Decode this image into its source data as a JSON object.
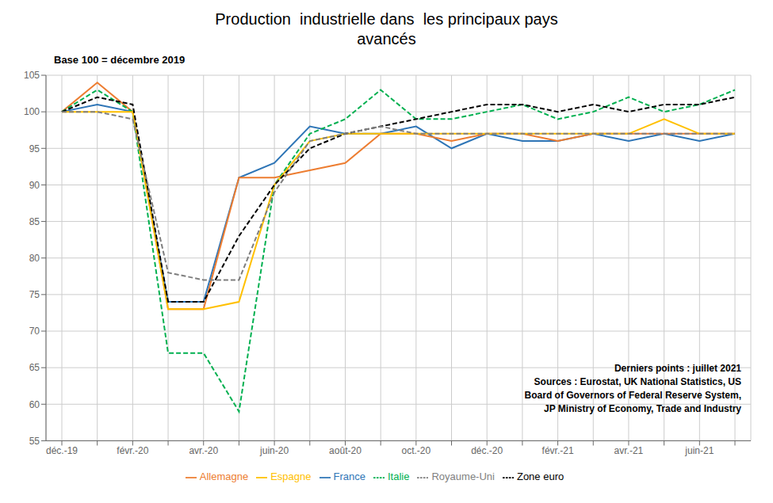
{
  "chart_data": {
    "type": "line",
    "title": "Production  industrielle dans  les principaux pays\navancés",
    "subtitle": "Base 100 = décembre 2019",
    "annotations": [
      "Derniers points : juillet 2021",
      "Sources : Eurostat, UK National Statistics, US",
      "Board of Governors of Federal Reserve System,",
      "JP Ministry of Economy, Trade and Industry"
    ],
    "categories": [
      "déc.-19",
      null,
      "févr.-20",
      null,
      "avr.-20",
      null,
      "juin-20",
      null,
      "août-20",
      null,
      "oct.-20",
      null,
      "déc.-20",
      null,
      "févr.-21",
      null,
      "avr.-21",
      null,
      "juin-21",
      null
    ],
    "series": [
      {
        "name": "France",
        "color": "#2E75B6",
        "line_style": "solid",
        "values": [
          100,
          101,
          100,
          74,
          74,
          91,
          93,
          98,
          97,
          97,
          98,
          95,
          97,
          96,
          96,
          97,
          96,
          97,
          96,
          97
        ]
      },
      {
        "name": "Allemagne",
        "color": "#ED7D31",
        "line_style": "solid",
        "values": [
          100,
          104,
          100,
          73,
          73,
          91,
          91,
          92,
          93,
          97,
          97,
          96,
          97,
          97,
          96,
          97,
          97,
          97,
          97,
          97
        ]
      },
      {
        "name": "Italie",
        "color": "#00B050",
        "line_style": "dashed",
        "values": [
          100,
          103,
          100,
          67,
          67,
          59,
          90,
          97,
          99,
          103,
          99,
          99,
          100,
          101,
          99,
          100,
          102,
          100,
          101,
          103
        ]
      },
      {
        "name": "Espagne",
        "color": "#FFC000",
        "line_style": "solid",
        "values": [
          100,
          100,
          100,
          73,
          73,
          74,
          90,
          96,
          97,
          97,
          97,
          97,
          97,
          97,
          97,
          97,
          97,
          99,
          97,
          97
        ]
      },
      {
        "name": "Zone euro",
        "color": "#000000",
        "line_style": "dashed",
        "values": [
          100,
          102,
          101,
          74,
          74,
          83,
          90,
          95,
          97,
          98,
          99,
          100,
          101,
          101,
          100,
          101,
          100,
          101,
          101,
          102
        ]
      },
      {
        "name": "Royaume-Uni",
        "color": "#7F7F7F",
        "line_style": "dashed",
        "values": [
          100,
          100,
          99,
          78,
          77,
          77,
          89,
          96,
          97,
          98,
          97,
          97,
          97,
          97,
          97,
          97,
          97,
          97,
          97,
          97
        ]
      }
    ],
    "ylim": [
      55,
      105
    ],
    "yticks": [
      55,
      60,
      65,
      70,
      75,
      80,
      85,
      90,
      95,
      100,
      105
    ],
    "grid": true,
    "legend": "bottom"
  }
}
